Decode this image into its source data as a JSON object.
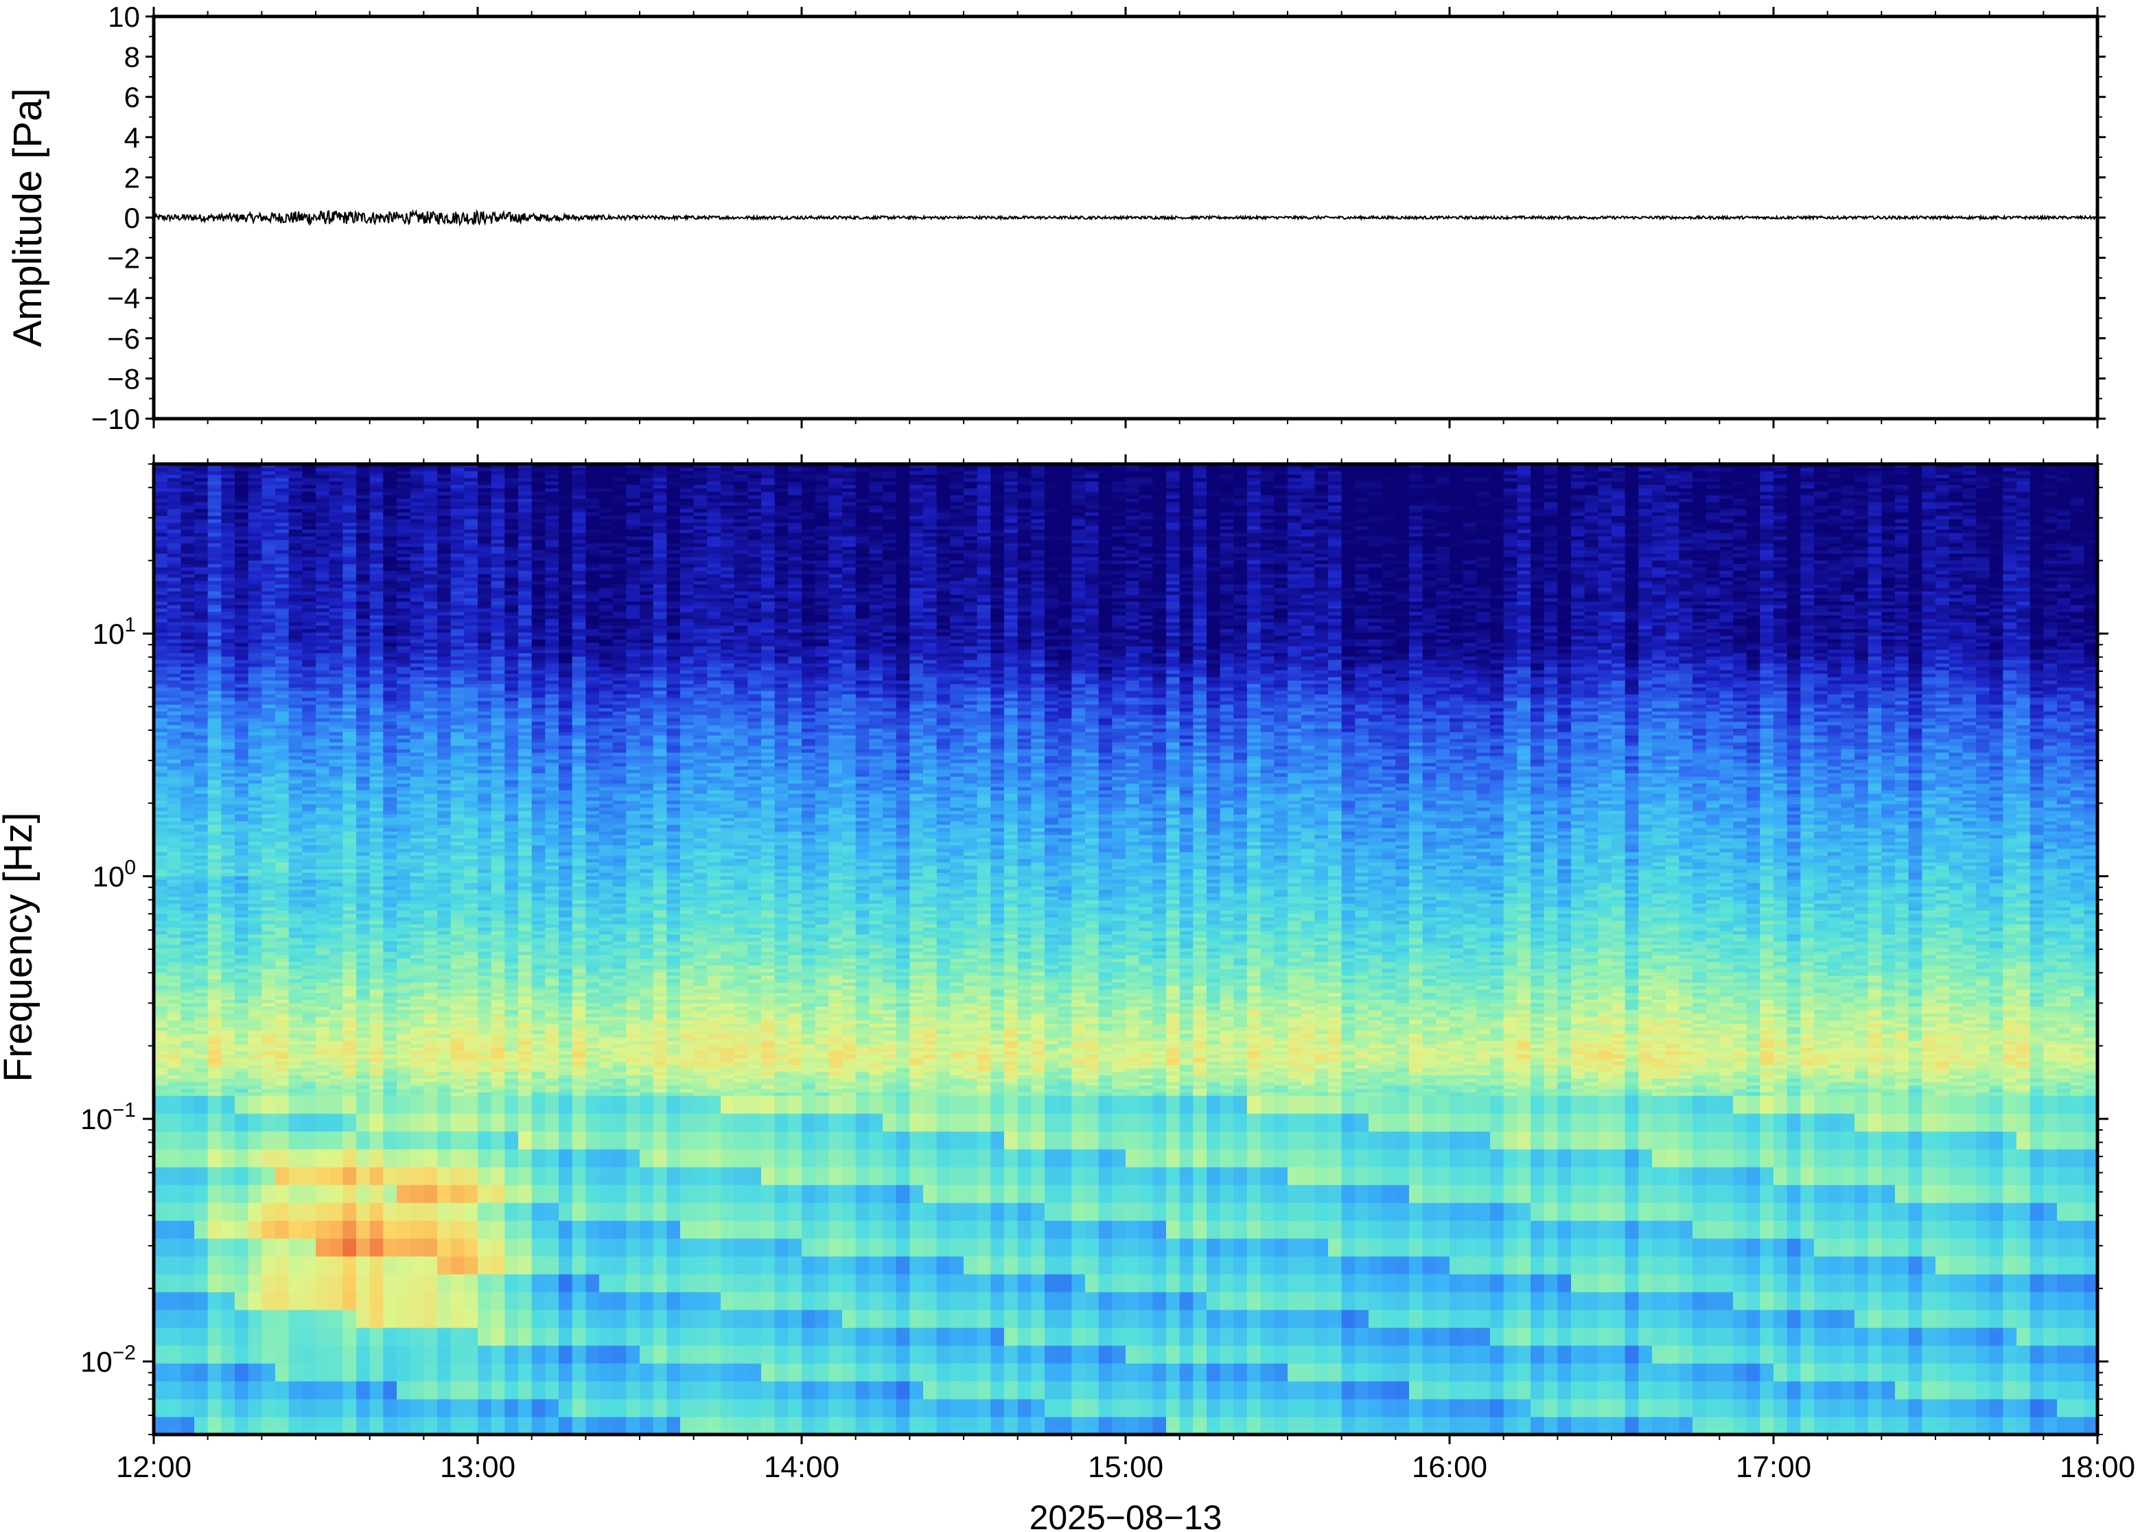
{
  "chart_data": [
    {
      "type": "line",
      "panel": "waveform",
      "ylabel": "Amplitude [Pa]",
      "ylim": [
        -10,
        10
      ],
      "y_ticks": [
        10,
        8,
        6,
        4,
        2,
        0,
        -2,
        -4,
        -6,
        -8,
        -10
      ],
      "y_tick_labels": [
        "10",
        "8",
        "6",
        "4",
        "2",
        "0",
        "−2",
        "−4",
        "−6",
        "−8",
        "−10"
      ],
      "xlim": [
        "12:00",
        "18:00"
      ],
      "series": [
        {
          "x": [
            "12:00",
            "12:15",
            "12:30",
            "12:45",
            "13:00",
            "13:15",
            "13:30",
            "13:45",
            "14:00",
            "14:30",
            "15:00",
            "15:30",
            "16:00",
            "16:30",
            "17:00",
            "17:30",
            "18:00"
          ],
          "envelope": [
            0.15,
            0.2,
            0.35,
            0.3,
            0.35,
            0.15,
            0.1,
            0.08,
            0.08,
            0.07,
            0.07,
            0.07,
            0.07,
            0.07,
            0.07,
            0.07,
            0.07
          ]
        }
      ],
      "line_color": "#000000"
    },
    {
      "type": "heatmap",
      "panel": "spectrogram",
      "ylabel": "Frequency [Hz]",
      "xlabel": "2025−08−13",
      "yscale": "log",
      "ylim": [
        0.005,
        50
      ],
      "y_ticks": [
        {
          "value": 10,
          "base": "10",
          "exp": "1"
        },
        {
          "value": 1,
          "base": "10",
          "exp": "0"
        },
        {
          "value": 0.1,
          "base": "10",
          "exp": "−1"
        },
        {
          "value": 0.01,
          "base": "10",
          "exp": "−2"
        }
      ],
      "x_ticks": [
        "12:00",
        "13:00",
        "14:00",
        "15:00",
        "16:00",
        "17:00",
        "18:00"
      ],
      "colormap": [
        "#0b0375",
        "#1d24c8",
        "#2f6cf0",
        "#3ab0f6",
        "#52dde0",
        "#8ff0b4",
        "#dcf58c",
        "#fbd565",
        "#f79b4f",
        "#e6552f"
      ],
      "intensity_profile": [
        {
          "freq": 50,
          "level": 0.0
        },
        {
          "freq": 9,
          "level": 0.05
        },
        {
          "freq": 5,
          "level": 0.18
        },
        {
          "freq": 2,
          "level": 0.3
        },
        {
          "freq": 1,
          "level": 0.38
        },
        {
          "freq": 0.5,
          "level": 0.48
        },
        {
          "freq": 0.3,
          "level": 0.58
        },
        {
          "freq": 0.18,
          "level": 0.68
        },
        {
          "freq": 0.12,
          "level": 0.52
        },
        {
          "freq": 0.05,
          "level": 0.45
        },
        {
          "freq": 0.02,
          "level": 0.4
        },
        {
          "freq": 0.005,
          "level": 0.4
        }
      ],
      "energy_burst": {
        "t_start": "12:05",
        "t_end": "13:15",
        "f_low": 0.015,
        "f_high": 0.1
      }
    }
  ]
}
